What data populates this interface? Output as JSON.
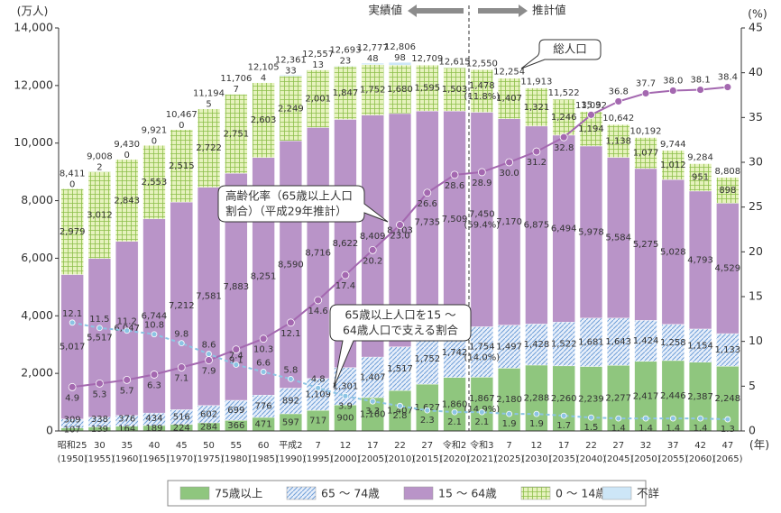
{
  "chart_data": {
    "type": "stacked_bar_line",
    "y_unit": "(万人)",
    "y2_unit": "(%)",
    "x_unit": "(年)",
    "categories": [
      "昭和25",
      "30",
      "35",
      "40",
      "45",
      "50",
      "55",
      "60",
      "平成2",
      "7",
      "12",
      "17",
      "22",
      "27",
      "令和2",
      "令和3",
      "7",
      "12",
      "17",
      "22",
      "27",
      "32",
      "37",
      "42",
      "47"
    ],
    "category_years": [
      "(1950)",
      "(1955)",
      "(1960)",
      "(1965)",
      "(1970)",
      "(1975)",
      "(1980)",
      "(1985)",
      "(1990)",
      "(1995)",
      "(2000)",
      "(2005)",
      "(2010)",
      "(2015)",
      "(2020)",
      "(2021)",
      "(2025)",
      "(2030)",
      "(2035)",
      "(2040)",
      "(2045)",
      "(2050)",
      "(2055)",
      "(2060)",
      "(2065)"
    ],
    "ylim": [
      0,
      14000
    ],
    "yticks": [
      0,
      {
        "value": 2000,
        "label": "2,000"
      },
      {
        "value": 4000,
        "label": "4,000"
      },
      {
        "value": 6000,
        "label": "6,000"
      },
      {
        "value": 8000,
        "label": "8,000"
      },
      {
        "value": 10000,
        "label": "10,000"
      },
      {
        "value": 12000,
        "label": "12,000"
      },
      {
        "value": 14000,
        "label": "14,000"
      }
    ],
    "y2lim": [
      0,
      45
    ],
    "y2ticks": [
      0,
      5,
      10,
      15,
      20,
      25,
      30,
      35,
      40,
      45
    ],
    "grid": false,
    "series": [
      {
        "name": "75歳以上",
        "color": "#8fc67e",
        "pattern": "none",
        "values": [
          107,
          139,
          164,
          189,
          224,
          284,
          366,
          471,
          597,
          717,
          900,
          1160,
          1407,
          1627,
          1860,
          1867,
          2180,
          2288,
          2260,
          2239,
          2277,
          2417,
          2446,
          2387,
          2248
        ],
        "value_labels": [
          "107",
          "139",
          "164",
          "189",
          "224",
          "284",
          "366",
          "471",
          "597",
          "717",
          "900",
          "1,160",
          "1,407",
          "1,627",
          "1,860",
          "1,867",
          "2,180",
          "2,288",
          "2,260",
          "2,239",
          "2,277",
          "2,417",
          "2,446",
          "2,387",
          "2,248"
        ]
      },
      {
        "name": "65 ～ 74歳",
        "color": "#6f9fd8",
        "pattern": "hatch",
        "pattern_background": "#e6eefa",
        "values": [
          309,
          338,
          376,
          434,
          516,
          602,
          699,
          776,
          892,
          1109,
          1301,
          1407,
          1517,
          1752,
          1742,
          1754,
          1497,
          1428,
          1522,
          1681,
          1643,
          1424,
          1258,
          1154,
          1133
        ],
        "value_labels": [
          "309",
          "338",
          "376",
          "434",
          "516",
          "602",
          "699",
          "776",
          "892",
          "1,109",
          "1,301",
          "1,407",
          "1,517",
          "1,752",
          "1,742",
          "1,754",
          "1,497",
          "1,428",
          "1,522",
          "1,681",
          "1,643",
          "1,424",
          "1,258",
          "1,154",
          "1,133"
        ]
      },
      {
        "name": "15 ～ 64歳",
        "color": "#b994c8",
        "pattern": "none",
        "values": [
          5017,
          5517,
          6047,
          6744,
          7212,
          7581,
          7883,
          8251,
          8590,
          8716,
          8622,
          8409,
          8103,
          7735,
          7509,
          7450,
          7170,
          6875,
          6494,
          5978,
          5584,
          5275,
          5028,
          4793,
          4529
        ],
        "value_labels": [
          "5,017",
          "5,517",
          "6,047",
          "6,744",
          "7,212",
          "7,581",
          "7,883",
          "8,251",
          "8,590",
          "8,716",
          "8,622",
          "8,409",
          "8,103",
          "7,735",
          "7,509",
          "7,450",
          "7,170",
          "6,875",
          "6,494",
          "5,978",
          "5,584",
          "5,275",
          "5,028",
          "4,793",
          "4,529"
        ]
      },
      {
        "name": "0 ～ 14歳",
        "color": "#8cbf4a",
        "pattern": "grid",
        "pattern_background": "#e6f2bd",
        "values": [
          2979,
          3012,
          2843,
          2553,
          2515,
          2722,
          2751,
          2603,
          2249,
          2001,
          1847,
          1752,
          1680,
          1595,
          1503,
          1478,
          1407,
          1321,
          1246,
          1194,
          1138,
          1077,
          1012,
          951,
          898
        ],
        "value_labels": [
          "2,979",
          "3,012",
          "2,843",
          "2,553",
          "2,515",
          "2,722",
          "2,751",
          "2,603",
          "2,249",
          "2,001",
          "1,847",
          "1,752",
          "1,680",
          "1,595",
          "1,503",
          "1,478",
          "1,407",
          "1,321",
          "1,246",
          "1,194",
          "1,138",
          "1,077",
          "1,012",
          "951",
          "898"
        ]
      },
      {
        "name": "不詳",
        "color": "#cde6f7",
        "pattern": "none",
        "values": [
          0,
          2,
          0,
          0,
          0,
          5,
          7,
          4,
          33,
          13,
          23,
          48,
          98,
          null,
          null,
          null,
          null,
          null,
          null,
          null,
          null,
          null,
          null,
          null,
          null
        ]
      }
    ],
    "totals": {
      "label": "総人口",
      "values": [
        8411,
        9008,
        9430,
        9921,
        10467,
        11194,
        11706,
        12105,
        12361,
        12557,
        12693,
        12777,
        12806,
        12709,
        12615,
        12550,
        12254,
        11913,
        11522,
        11092,
        10642,
        10192,
        9744,
        9284,
        8808
      ],
      "value_labels": [
        "8,411",
        "9,008",
        "9,430",
        "9,921",
        "10,467",
        "11,194",
        "11,706",
        "12,105",
        "12,361",
        "12,557",
        "12,693",
        "12,777",
        "12,806",
        "12,709",
        "12,615",
        "12,550",
        "12,254",
        "11,913",
        "11,522",
        "11,092",
        "10,642",
        "10,192",
        "9,744",
        "9,284",
        "8,808"
      ]
    },
    "shares": {
      "category": "令和3",
      "values": [
        14.9,
        14.0,
        59.4,
        11.8
      ],
      "value_labels": [
        "(14.9%)",
        "(14.0%)",
        "(59.4%)",
        "(11.8%)"
      ]
    },
    "line_series": [
      {
        "label_lines": [
          "高齢化率（65歳以上人口",
          "割合）（平成29年推計）"
        ],
        "color": "#a468b0",
        "axis": "y2",
        "dashed": false,
        "values": [
          4.9,
          5.3,
          5.7,
          6.3,
          7.1,
          7.9,
          9.1,
          10.3,
          12.1,
          14.6,
          17.4,
          20.2,
          23.0,
          26.6,
          28.6,
          28.9,
          30.0,
          31.2,
          32.8,
          35.3,
          36.8,
          37.7,
          38.0,
          38.1,
          38.4
        ],
        "value_labels": [
          "4.9",
          "5.3",
          "5.7",
          "6.3",
          "7.1",
          "7.9",
          "9.1",
          "10.3",
          "12.1",
          "14.6",
          "17.4",
          "20.2",
          "23.0",
          "26.6",
          "28.6",
          "28.9",
          "30.0",
          "31.2",
          "32.8",
          "35.3",
          "36.8",
          "37.7",
          "38.0",
          "38.1",
          "38.4"
        ]
      },
      {
        "label_lines": [
          "65歳以上人口を15 ～",
          "64歳人口で支える割合"
        ],
        "color": "#8cc4e4",
        "axis": "y2",
        "dashed": true,
        "values": [
          12.1,
          11.5,
          11.2,
          10.8,
          9.8,
          8.6,
          7.4,
          6.6,
          5.8,
          4.8,
          3.9,
          3.3,
          2.8,
          2.3,
          2.1,
          2.1,
          1.9,
          1.9,
          1.7,
          1.5,
          1.4,
          1.4,
          1.4,
          1.4,
          1.3
        ]
      }
    ],
    "annotations": {
      "actual": "実績値",
      "projected": "推計値"
    }
  }
}
